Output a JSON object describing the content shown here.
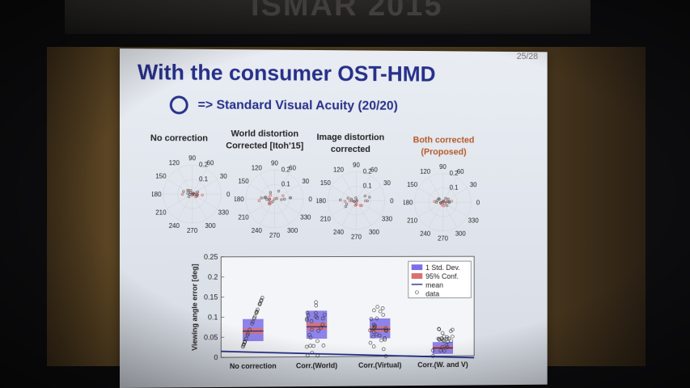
{
  "banner_text": "ISMAR 2015",
  "slide": {
    "page_number": "25/28",
    "title": "With the consumer OST-HMD",
    "subtitle": "=> Standard Visual Acuity (20/20)",
    "subtitle_icon": "circle-icon"
  },
  "polar_plots": [
    {
      "label_line1": "No correction",
      "label_line2": ""
    },
    {
      "label_line1": "World distortion",
      "label_line2": "Corrected [Itoh'15]"
    },
    {
      "label_line1": "Image distortion",
      "label_line2": "corrected"
    },
    {
      "label_line1": "Both corrected",
      "label_line2": "(Proposed)"
    }
  ],
  "polar_ticks": {
    "angles": [
      "90",
      "60",
      "30",
      "0",
      "330",
      "300",
      "270",
      "240",
      "210",
      "180",
      "150",
      "120"
    ],
    "radii": [
      "0.2",
      "0.1"
    ]
  },
  "colors": {
    "title": "#27308a",
    "proposed": "#b55a2a",
    "std_box": "#7b6fe8",
    "conf_box": "#d9716f",
    "mean_line": "#1f2a8a"
  },
  "chart_data": {
    "type": "box",
    "ylabel": "Viewing angle error [deg]",
    "ylim": [
      0,
      0.25
    ],
    "yticks": [
      "0",
      "0.05",
      "0.1",
      "0.15",
      "0.2",
      "0.25"
    ],
    "categories": [
      "No correction",
      "Corr.(World)",
      "Corr.(Virtual)",
      "Corr.(W. and V)"
    ],
    "legend": [
      "1 Std. Dev.",
      "95% Conf.",
      "mean",
      "data"
    ],
    "legend_position": "top-right",
    "mean": [
      0.065,
      0.075,
      0.068,
      0.02
    ],
    "std_low": [
      0.04,
      0.045,
      0.045,
      0.005
    ],
    "std_high": [
      0.095,
      0.115,
      0.095,
      0.035
    ],
    "conf_low": [
      0.058,
      0.068,
      0.062,
      0.016
    ],
    "conf_high": [
      0.072,
      0.085,
      0.075,
      0.025
    ],
    "data_min": [
      0.025,
      0.0,
      0.0,
      -0.005
    ],
    "data_max": [
      0.155,
      0.14,
      0.125,
      0.07
    ]
  }
}
